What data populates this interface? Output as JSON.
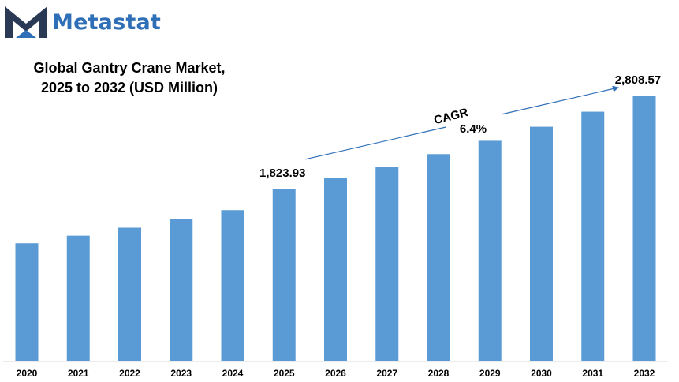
{
  "brand": {
    "name": "Metastat",
    "logo_icon": "metastat-m-logo",
    "color": "#2f6fb7"
  },
  "chart_data": {
    "type": "bar",
    "title_line1": "Global Gantry Crane Market,",
    "title_line2": "2025 to 2032 (USD Million)",
    "categories": [
      "2020",
      "2021",
      "2022",
      "2023",
      "2024",
      "2025",
      "2026",
      "2027",
      "2028",
      "2029",
      "2030",
      "2031",
      "2032"
    ],
    "values": [
      1252,
      1332,
      1417,
      1507,
      1603,
      1823.93,
      1940,
      2064,
      2196,
      2337,
      2486,
      2645,
      2808.57
    ],
    "bar_color": "#5b9bd5",
    "ylim": [
      0,
      3000
    ],
    "grid": false,
    "data_labels": [
      {
        "category": "2025",
        "text": "1,823.93"
      },
      {
        "category": "2032",
        "text": "2,808.57"
      }
    ],
    "annotation": {
      "label": "CAGR",
      "value": "6.4%",
      "from": "2025",
      "to": "2032"
    }
  }
}
